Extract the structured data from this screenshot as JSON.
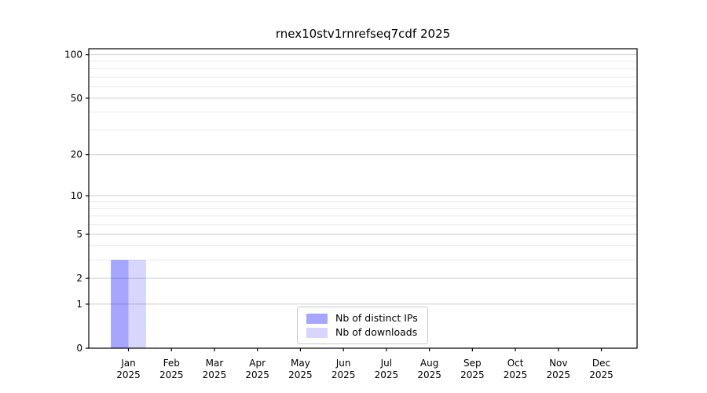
{
  "title": "rnex10stv1rnrefseq7cdf 2025",
  "colors": {
    "background": "#ffffff",
    "axis": "#000000",
    "grid_major": "#cdcdcd",
    "grid_minor": "#ececec",
    "tick_label": "#000000",
    "legend_border": "#c9c9c9"
  },
  "chart_data": {
    "type": "bar",
    "categories": [
      "Jan",
      "Feb",
      "Mar",
      "Apr",
      "May",
      "Jun",
      "Jul",
      "Aug",
      "Sep",
      "Oct",
      "Nov",
      "Dec"
    ],
    "x_year_label": "2025",
    "series": [
      {
        "name": "Nb of distinct IPs",
        "color": "rgba(0,0,255,0.35)",
        "values": [
          3,
          0,
          0,
          0,
          0,
          0,
          0,
          0,
          0,
          0,
          0,
          0
        ]
      },
      {
        "name": "Nb of downloads",
        "color": "rgba(0,0,255,0.16)",
        "values": [
          3,
          0,
          0,
          0,
          0,
          0,
          0,
          0,
          0,
          0,
          0,
          0
        ]
      }
    ],
    "yscale": "log1p",
    "ylim": [
      0,
      110
    ],
    "y_major_ticks": [
      0,
      1,
      2,
      5,
      10,
      20,
      50,
      100
    ],
    "y_minor_ticks": [
      3,
      4,
      6,
      7,
      8,
      9,
      30,
      40,
      60,
      70,
      80,
      90
    ],
    "grid": "on",
    "legend_position": "inside-bottom-center"
  },
  "legend": {
    "items": [
      {
        "label": "Nb of distinct IPs"
      },
      {
        "label": "Nb of downloads"
      }
    ]
  }
}
